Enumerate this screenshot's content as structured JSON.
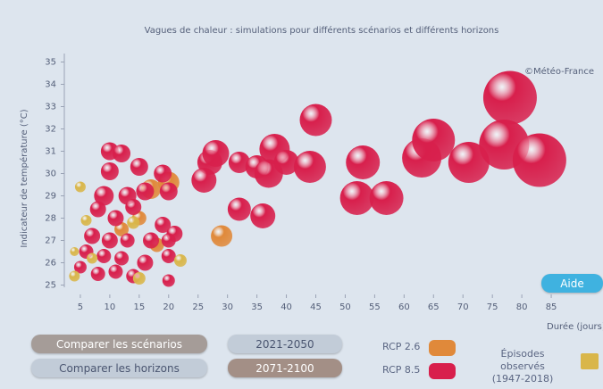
{
  "chart_data": {
    "type": "bubble",
    "title": "Vagues de chaleur : simulations pour différents scénarios et différents horizons",
    "watermark": "©Météo-France",
    "x_label": "Durée (jours)",
    "y_label": "Indicateur de température (°C)",
    "xlim": [
      0,
      90
    ],
    "xticks": [
      5,
      10,
      15,
      20,
      25,
      30,
      35,
      40,
      45,
      50,
      55,
      60,
      65,
      70,
      75,
      80,
      85
    ],
    "ylim": [
      24.3,
      35.5
    ],
    "yticks": [
      25,
      26,
      27,
      28,
      29,
      30,
      31,
      32,
      33,
      34,
      35
    ],
    "series": [
      {
        "name": "RCP 2.6",
        "color": "#e0893a",
        "x": [
          17,
          20,
          29,
          15,
          12,
          18
        ],
        "y": [
          29.3,
          29.6,
          27.2,
          28,
          27.5,
          26.8
        ],
        "sizes": [
          11,
          12,
          12,
          8,
          8,
          8
        ]
      },
      {
        "name": "RCP 8.5",
        "color": "#d81f4c",
        "x": [
          10,
          12,
          15,
          10,
          19,
          9,
          13,
          16,
          20,
          8,
          11,
          14,
          19,
          21,
          7,
          10,
          13,
          17,
          20,
          6,
          9,
          12,
          16,
          20,
          5,
          8,
          11,
          14,
          20,
          27,
          28,
          26,
          32,
          35,
          37,
          38,
          40,
          44,
          45,
          36,
          32,
          53,
          52,
          57,
          63,
          65,
          71,
          77,
          78,
          83
        ],
        "y": [
          31,
          30.9,
          30.3,
          30.1,
          30,
          29,
          29,
          29.2,
          29.2,
          28.4,
          28,
          28.5,
          27.7,
          27.3,
          27.2,
          27,
          27,
          27,
          27,
          26.5,
          26.3,
          26.2,
          26,
          26.3,
          25.8,
          25.5,
          25.6,
          25.4,
          25.2,
          30.5,
          30.9,
          29.7,
          30.5,
          30.3,
          30,
          31.1,
          30.5,
          30.3,
          32.4,
          28.1,
          28.4,
          30.5,
          28.9,
          28.9,
          30.7,
          31.5,
          30.5,
          31.3,
          33.4,
          30.6
        ],
        "sizes": [
          10,
          10,
          10,
          10,
          10,
          11,
          10,
          10,
          10,
          9,
          9,
          9,
          9,
          9,
          9,
          9,
          8,
          9,
          8,
          8,
          8,
          8,
          9,
          8,
          7,
          8,
          8,
          8,
          7,
          14,
          15,
          14,
          12,
          13,
          16,
          17,
          14,
          18,
          18,
          14,
          13,
          19,
          19,
          19,
          22,
          24,
          23,
          28,
          30,
          30
        ]
      },
      {
        "name": "Épisodes observés\n(1947-2018)",
        "color": "#d9b64a",
        "x": [
          5,
          14,
          22,
          4,
          15,
          6,
          4,
          7
        ],
        "y": [
          29.4,
          27.8,
          26.1,
          25.4,
          25.3,
          27.9,
          26.5,
          26.2
        ],
        "sizes": [
          6,
          7,
          7,
          6,
          7,
          6,
          5,
          6
        ]
      }
    ]
  },
  "controls": {
    "compare_scenarios": "Comparer les scénarios",
    "compare_horizons": "Comparer les horizons",
    "horizon_1": "2021-2050",
    "horizon_2": "2071-2100",
    "help": "Aide"
  }
}
